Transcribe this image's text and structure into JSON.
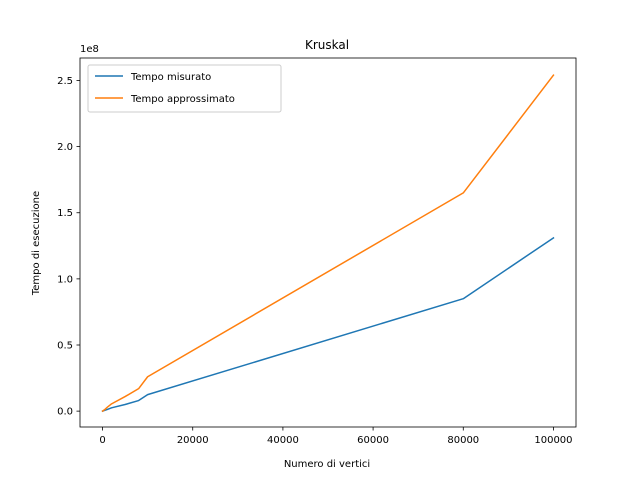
{
  "chart_data": {
    "type": "line",
    "title": "Kruskal",
    "xlabel": "Numero di vertici",
    "ylabel": "Tempo di esecuzione",
    "y_offset_label": "1e8",
    "y_scale": 100000000,
    "xlim": [
      -5000,
      105000
    ],
    "ylim": [
      -12000000,
      267000000
    ],
    "x_ticks": [
      0,
      20000,
      40000,
      60000,
      80000,
      100000
    ],
    "x_tick_labels": [
      "0",
      "20000",
      "40000",
      "60000",
      "80000",
      "100000"
    ],
    "y_ticks": [
      0,
      50000000,
      100000000,
      150000000,
      200000000,
      250000000
    ],
    "y_tick_labels": [
      "0.0",
      "0.5",
      "1.0",
      "1.5",
      "2.0",
      "2.5"
    ],
    "grid": false,
    "legend_position": "top-left",
    "series": [
      {
        "name": "Tempo misurato",
        "color": "#1f77b4",
        "x": [
          10,
          500,
          1000,
          2000,
          5000,
          8000,
          10000,
          80000,
          100000
        ],
        "y": [
          0,
          600000,
          1200000,
          2500000,
          5000000,
          8000000,
          12500000,
          85000000,
          131000000
        ]
      },
      {
        "name": "Tempo approssimato",
        "color": "#ff7f0e",
        "x": [
          10,
          500,
          1000,
          2000,
          5000,
          8000,
          10000,
          80000,
          100000
        ],
        "y": [
          0,
          1200000,
          2800000,
          5500000,
          11000000,
          17000000,
          26000000,
          165000000,
          254000000
        ]
      }
    ]
  }
}
